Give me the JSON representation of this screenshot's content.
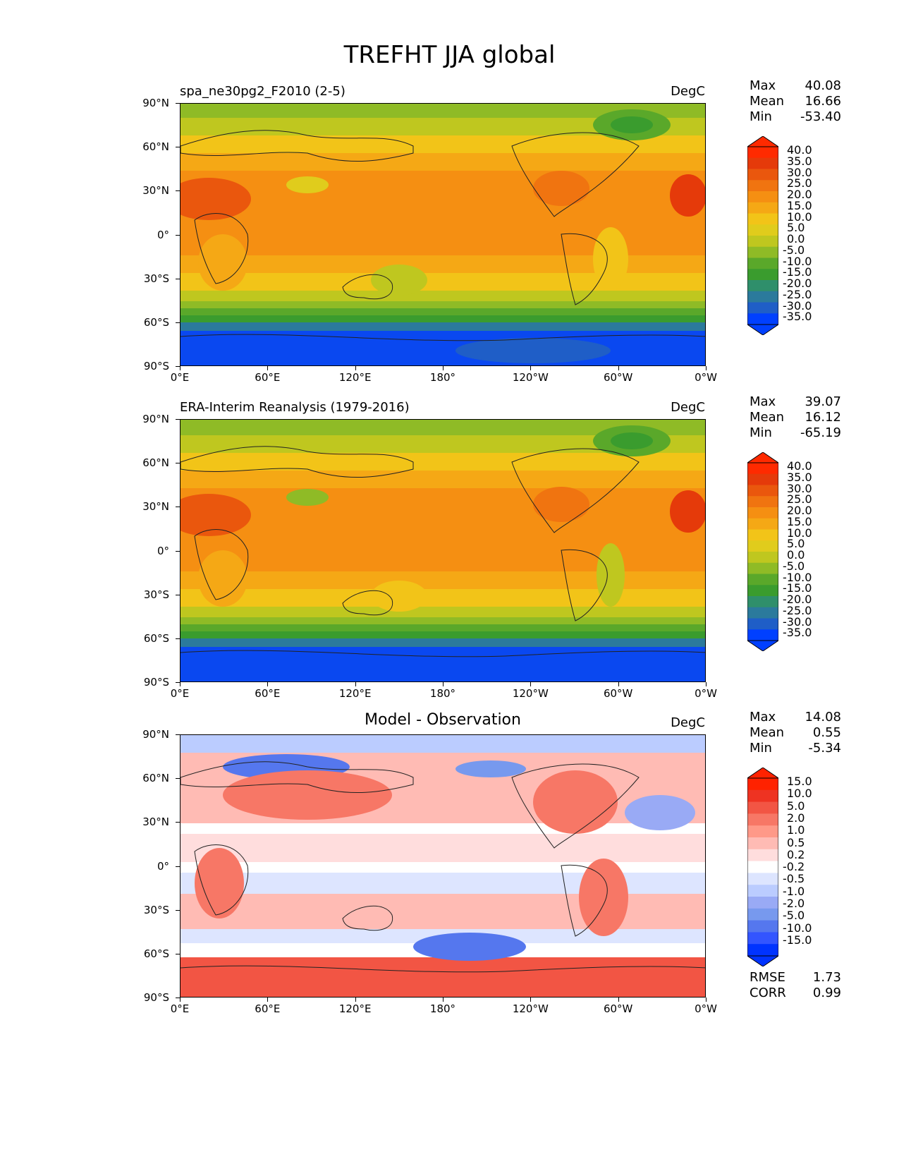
{
  "title": "TREFHT JJA global",
  "panels": [
    {
      "subtitle": "spa_ne30pg2_F2010 (2-5)",
      "units": "DegC",
      "stats": {
        "max_label": "Max",
        "max": "40.08",
        "mean_label": "Mean",
        "mean": "16.66",
        "min_label": "Min",
        "min": "-53.40"
      },
      "colorbar_levels": [
        "40.0",
        "35.0",
        "30.0",
        "25.0",
        "20.0",
        "15.0",
        "10.0",
        "5.0",
        "0.0",
        "-5.0",
        "-10.0",
        "-15.0",
        "-20.0",
        "-25.0",
        "-30.0",
        "-35.0"
      ]
    },
    {
      "subtitle": "ERA-Interim Reanalysis (1979-2016)",
      "units": "DegC",
      "stats": {
        "max_label": "Max",
        "max": "39.07",
        "mean_label": "Mean",
        "mean": "16.12",
        "min_label": "Min",
        "min": "-65.19"
      },
      "colorbar_levels": [
        "40.0",
        "35.0",
        "30.0",
        "25.0",
        "20.0",
        "15.0",
        "10.0",
        "5.0",
        "0.0",
        "-5.0",
        "-10.0",
        "-15.0",
        "-20.0",
        "-25.0",
        "-30.0",
        "-35.0"
      ]
    },
    {
      "subtitle": "Model - Observation",
      "units": "DegC",
      "stats": {
        "max_label": "Max",
        "max": "14.08",
        "mean_label": "Mean",
        "mean": "0.55",
        "min_label": "Min",
        "min": "-5.34"
      },
      "colorbar_levels": [
        "15.0",
        "10.0",
        "5.0",
        "2.0",
        "1.0",
        "0.5",
        "0.2",
        "-0.2",
        "-0.5",
        "-1.0",
        "-2.0",
        "-5.0",
        "-10.0",
        "-15.0"
      ],
      "fit": {
        "rmse_label": "RMSE",
        "rmse": "1.73",
        "corr_label": "CORR",
        "corr": "0.99"
      }
    }
  ],
  "axes": {
    "lat_labels": [
      "90°N",
      "60°N",
      "30°N",
      "0°",
      "30°S",
      "60°S",
      "90°S"
    ],
    "lon_labels": [
      "0°E",
      "60°E",
      "120°E",
      "180°",
      "120°W",
      "60°W",
      "0°W"
    ]
  },
  "colors": {
    "abs_scale": [
      "#0040ff",
      "#1f5ec7",
      "#2b7a9c",
      "#2f8f6b",
      "#3a9c2e",
      "#5aa82a",
      "#8fbb26",
      "#bfc71f",
      "#e0cc1c",
      "#f2c418",
      "#f5a815",
      "#f58f12",
      "#f07410",
      "#ea570d",
      "#e53a0a",
      "#ff2a00"
    ],
    "diff_scale": [
      "#0033ff",
      "#3355ff",
      "#5577ee",
      "#7799ee",
      "#99aaf5",
      "#bbccff",
      "#dde5ff",
      "#ffffff",
      "#ffdddd",
      "#ffbbb4",
      "#ff9988",
      "#f77766",
      "#f25544",
      "#ee3322",
      "#ff2200"
    ]
  }
}
